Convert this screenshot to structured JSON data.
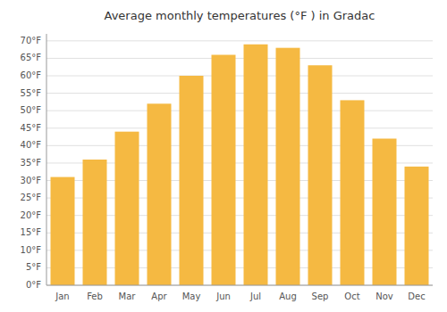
{
  "chart_data": {
    "type": "bar",
    "title": "Average monthly temperatures (°F ) in Gradac",
    "categories": [
      "Jan",
      "Feb",
      "Mar",
      "Apr",
      "May",
      "Jun",
      "Jul",
      "Aug",
      "Sep",
      "Oct",
      "Nov",
      "Dec"
    ],
    "values": [
      31,
      36,
      44,
      52,
      60,
      66,
      69,
      68,
      63,
      53,
      42,
      34
    ],
    "color": "#F5B942",
    "ylim": [
      0,
      72
    ],
    "yticks": [
      {
        "value": 0,
        "label": "0°F"
      },
      {
        "value": 5,
        "label": "5°F"
      },
      {
        "value": 10,
        "label": "10°F"
      },
      {
        "value": 15,
        "label": "15°F"
      },
      {
        "value": 20,
        "label": "20°F"
      },
      {
        "value": 25,
        "label": "25°F"
      },
      {
        "value": 30,
        "label": "30°F"
      },
      {
        "value": 35,
        "label": "35°F"
      },
      {
        "value": 40,
        "label": "40°F"
      },
      {
        "value": 45,
        "label": "45°F"
      },
      {
        "value": 50,
        "label": "50°F"
      },
      {
        "value": 55,
        "label": "55°F"
      },
      {
        "value": 60,
        "label": "60°F"
      },
      {
        "value": 65,
        "label": "65°F"
      },
      {
        "value": 70,
        "label": "70°F"
      }
    ],
    "grid": true
  }
}
